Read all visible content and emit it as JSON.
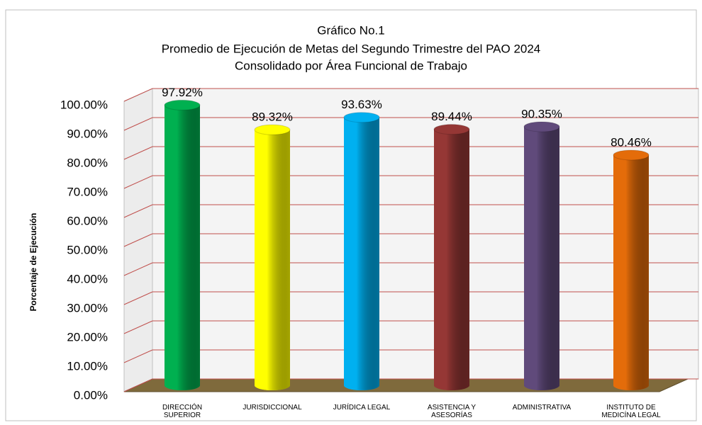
{
  "chart_data": {
    "type": "bar",
    "title": "Gráfico No.1",
    "subtitle": [
      "Promedio de Ejecución de Metas del Segundo Trimestre del PAO 2024",
      "Consolidado por Área Funcional de Trabajo"
    ],
    "y_label": "Porcentaje de Ejecución",
    "categories": [
      "DIRECCIÓN\nSUPERIOR",
      "JURISDICCIONAL",
      "JURÍDICA LEGAL",
      "ASISTENCIA Y\nASESORÍAS",
      "ADMINISTRATIVA",
      "INSTITUTO DE\nMEDICÍNA LEGAL"
    ],
    "values": [
      97.92,
      89.32,
      93.63,
      89.44,
      90.35,
      80.46
    ],
    "value_labels": [
      "97.92%",
      "89.32%",
      "93.63%",
      "89.44%",
      "90.35%",
      "80.46%"
    ],
    "colors": [
      "#00b050",
      "#ffff00",
      "#00b0f0",
      "#953735",
      "#604a7b",
      "#e46c0a"
    ],
    "ylim": [
      0,
      100
    ],
    "yticks": [
      {
        "value": 0,
        "label": "0.00%"
      },
      {
        "value": 10,
        "label": "10.00%"
      },
      {
        "value": 20,
        "label": "20.00%"
      },
      {
        "value": 30,
        "label": "30.00%"
      },
      {
        "value": 40,
        "label": "40.00%"
      },
      {
        "value": 50,
        "label": "50.00%"
      },
      {
        "value": 60,
        "label": "60.00%"
      },
      {
        "value": 70,
        "label": "70.00%"
      },
      {
        "value": 80,
        "label": "80.00%"
      },
      {
        "value": 90,
        "label": "90.00%"
      },
      {
        "value": 100,
        "label": "100.00%"
      }
    ],
    "grid": true
  }
}
